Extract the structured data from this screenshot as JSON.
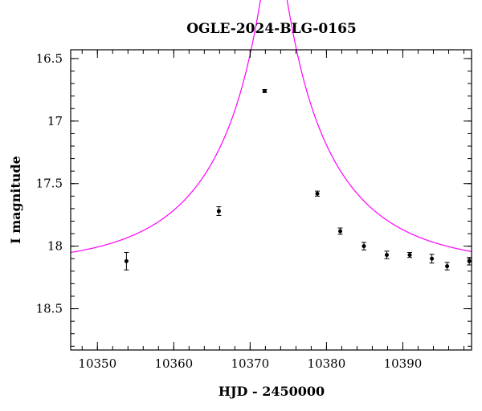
{
  "chart_data": {
    "type": "scatter",
    "title": "OGLE-2024-BLG-0165",
    "xlabel": "HJD - 2450000",
    "ylabel": "I magnitude",
    "xlim": [
      10346.5,
      10399
    ],
    "ylim": [
      18.83,
      16.43
    ],
    "y_inverted": true,
    "x_ticks": [
      10350,
      10360,
      10370,
      10380,
      10390
    ],
    "y_ticks": [
      16.5,
      17,
      17.5,
      18,
      18.5
    ],
    "x_tick_labels": [
      "10350",
      "10360",
      "10370",
      "10380",
      "10390"
    ],
    "y_tick_labels": [
      "16.5",
      "17",
      "17.5",
      "18",
      "18.5"
    ],
    "x_minor_step": 2,
    "y_minor_step": 0.1,
    "grid": false,
    "model_color": "#ff00ff",
    "point_color": "#000000",
    "model": {
      "name": "model",
      "t0": 10373.1,
      "u0": 0.092,
      "tE": 16.0,
      "baseline_mag": 18.155
    },
    "series": [
      {
        "name": "data",
        "x": [
          10353.8,
          10365.9,
          10371.9,
          10378.8,
          10381.8,
          10384.9,
          10387.9,
          10390.9,
          10393.8,
          10395.8,
          10398.7
        ],
        "y": [
          18.12,
          17.72,
          16.76,
          17.58,
          17.88,
          18.0,
          18.07,
          18.07,
          18.1,
          18.16,
          18.12
        ],
        "err": [
          0.07,
          0.035,
          0.012,
          0.02,
          0.025,
          0.03,
          0.03,
          0.02,
          0.035,
          0.03,
          0.03
        ]
      }
    ]
  }
}
